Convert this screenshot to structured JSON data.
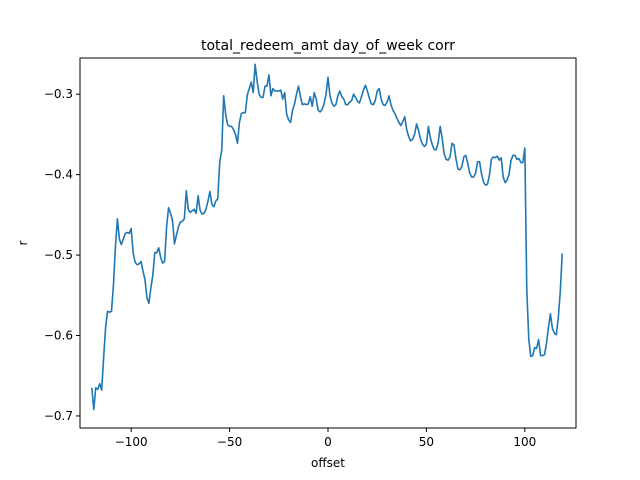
{
  "chart_data": {
    "type": "line",
    "title": "total_redeem_amt day_of_week corr",
    "xlabel": "offset",
    "ylabel": "r",
    "xlim": [
      -126,
      126
    ],
    "ylim": [
      -0.715,
      -0.255
    ],
    "xticks": [
      -100,
      -50,
      0,
      50,
      100
    ],
    "xtick_labels": [
      "−100",
      "−50",
      "0",
      "50",
      "100"
    ],
    "yticks": [
      -0.7,
      -0.6,
      -0.5,
      -0.4,
      -0.3
    ],
    "ytick_labels": [
      "−0.7",
      "−0.6",
      "−0.5",
      "−0.4",
      "−0.3"
    ],
    "grid": false,
    "legend": "none",
    "series": [
      {
        "color": "#1f77b4",
        "points": [
          [
            -120,
            -0.665
          ],
          [
            -119,
            -0.692
          ],
          [
            -118,
            -0.665
          ],
          [
            -117,
            -0.667
          ],
          [
            -116,
            -0.66
          ],
          [
            -115,
            -0.668
          ],
          [
            -114,
            -0.628
          ],
          [
            -113,
            -0.59
          ],
          [
            -112,
            -0.57
          ],
          [
            -111,
            -0.571
          ],
          [
            -110,
            -0.57
          ],
          [
            -109,
            -0.537
          ],
          [
            -108,
            -0.49
          ],
          [
            -107,
            -0.455
          ],
          [
            -106,
            -0.48
          ],
          [
            -105,
            -0.487
          ],
          [
            -104,
            -0.48
          ],
          [
            -103,
            -0.473
          ],
          [
            -102,
            -0.472
          ],
          [
            -101,
            -0.473
          ],
          [
            -100,
            -0.467
          ],
          [
            -99,
            -0.497
          ],
          [
            -98,
            -0.509
          ],
          [
            -97,
            -0.512
          ],
          [
            -96,
            -0.511
          ],
          [
            -95,
            -0.508
          ],
          [
            -94,
            -0.52
          ],
          [
            -93,
            -0.53
          ],
          [
            -92,
            -0.553
          ],
          [
            -91,
            -0.56
          ],
          [
            -90,
            -0.541
          ],
          [
            -89,
            -0.525
          ],
          [
            -88,
            -0.497
          ],
          [
            -87,
            -0.497
          ],
          [
            -86,
            -0.491
          ],
          [
            -85,
            -0.503
          ],
          [
            -84,
            -0.51
          ],
          [
            -83,
            -0.508
          ],
          [
            -82,
            -0.465
          ],
          [
            -81,
            -0.441
          ],
          [
            -80,
            -0.448
          ],
          [
            -79,
            -0.457
          ],
          [
            -78,
            -0.486
          ],
          [
            -77,
            -0.475
          ],
          [
            -76,
            -0.465
          ],
          [
            -75,
            -0.459
          ],
          [
            -74,
            -0.458
          ],
          [
            -73,
            -0.455
          ],
          [
            -72,
            -0.42
          ],
          [
            -71,
            -0.443
          ],
          [
            -70,
            -0.447
          ],
          [
            -69,
            -0.445
          ],
          [
            -68,
            -0.443
          ],
          [
            -67,
            -0.448
          ],
          [
            -66,
            -0.426
          ],
          [
            -65,
            -0.444
          ],
          [
            -64,
            -0.449
          ],
          [
            -63,
            -0.448
          ],
          [
            -62,
            -0.443
          ],
          [
            -61,
            -0.433
          ],
          [
            -60,
            -0.421
          ],
          [
            -59,
            -0.437
          ],
          [
            -58,
            -0.44
          ],
          [
            -57,
            -0.433
          ],
          [
            -56,
            -0.43
          ],
          [
            -55,
            -0.384
          ],
          [
            -54,
            -0.37
          ],
          [
            -53,
            -0.302
          ],
          [
            -52,
            -0.325
          ],
          [
            -51,
            -0.338
          ],
          [
            -50,
            -0.34
          ],
          [
            -49,
            -0.34
          ],
          [
            -48,
            -0.344
          ],
          [
            -47,
            -0.35
          ],
          [
            -46,
            -0.361
          ],
          [
            -45,
            -0.335
          ],
          [
            -44,
            -0.324
          ],
          [
            -43,
            -0.323
          ],
          [
            -42,
            -0.323
          ],
          [
            -41,
            -0.301
          ],
          [
            -40,
            -0.293
          ],
          [
            -39,
            -0.285
          ],
          [
            -38,
            -0.298
          ],
          [
            -37,
            -0.263
          ],
          [
            -36,
            -0.284
          ],
          [
            -35,
            -0.3
          ],
          [
            -34,
            -0.304
          ],
          [
            -33,
            -0.304
          ],
          [
            -32,
            -0.29
          ],
          [
            -31,
            -0.29
          ],
          [
            -30,
            -0.276
          ],
          [
            -29,
            -0.302
          ],
          [
            -28,
            -0.293
          ],
          [
            -27,
            -0.296
          ],
          [
            -26,
            -0.296
          ],
          [
            -25,
            -0.296
          ],
          [
            -24,
            -0.295
          ],
          [
            -23,
            -0.306
          ],
          [
            -22,
            -0.298
          ],
          [
            -21,
            -0.325
          ],
          [
            -20,
            -0.332
          ],
          [
            -19,
            -0.335
          ],
          [
            -18,
            -0.32
          ],
          [
            -17,
            -0.312
          ],
          [
            -16,
            -0.3
          ],
          [
            -15,
            -0.29
          ],
          [
            -14,
            -0.303
          ],
          [
            -13,
            -0.313
          ],
          [
            -12,
            -0.312
          ],
          [
            -11,
            -0.313
          ],
          [
            -10,
            -0.312
          ],
          [
            -9,
            -0.303
          ],
          [
            -8,
            -0.315
          ],
          [
            -7,
            -0.298
          ],
          [
            -6,
            -0.306
          ],
          [
            -5,
            -0.32
          ],
          [
            -4,
            -0.322
          ],
          [
            -3,
            -0.319
          ],
          [
            -2,
            -0.312
          ],
          [
            -1,
            -0.3
          ],
          [
            0,
            -0.279
          ],
          [
            1,
            -0.302
          ],
          [
            2,
            -0.311
          ],
          [
            3,
            -0.315
          ],
          [
            4,
            -0.313
          ],
          [
            5,
            -0.302
          ],
          [
            6,
            -0.296
          ],
          [
            7,
            -0.303
          ],
          [
            8,
            -0.306
          ],
          [
            9,
            -0.313
          ],
          [
            10,
            -0.313
          ],
          [
            11,
            -0.31
          ],
          [
            12,
            -0.308
          ],
          [
            13,
            -0.3
          ],
          [
            14,
            -0.304
          ],
          [
            15,
            -0.309
          ],
          [
            16,
            -0.311
          ],
          [
            17,
            -0.303
          ],
          [
            18,
            -0.295
          ],
          [
            19,
            -0.289
          ],
          [
            20,
            -0.296
          ],
          [
            21,
            -0.305
          ],
          [
            22,
            -0.312
          ],
          [
            23,
            -0.313
          ],
          [
            24,
            -0.308
          ],
          [
            25,
            -0.296
          ],
          [
            26,
            -0.293
          ],
          [
            27,
            -0.306
          ],
          [
            28,
            -0.313
          ],
          [
            29,
            -0.314
          ],
          [
            30,
            -0.31
          ],
          [
            31,
            -0.302
          ],
          [
            32,
            -0.313
          ],
          [
            33,
            -0.32
          ],
          [
            34,
            -0.324
          ],
          [
            35,
            -0.33
          ],
          [
            36,
            -0.335
          ],
          [
            37,
            -0.339
          ],
          [
            38,
            -0.334
          ],
          [
            39,
            -0.328
          ],
          [
            40,
            -0.344
          ],
          [
            41,
            -0.353
          ],
          [
            42,
            -0.358
          ],
          [
            43,
            -0.356
          ],
          [
            44,
            -0.35
          ],
          [
            45,
            -0.337
          ],
          [
            46,
            -0.345
          ],
          [
            47,
            -0.356
          ],
          [
            48,
            -0.362
          ],
          [
            49,
            -0.365
          ],
          [
            50,
            -0.362
          ],
          [
            51,
            -0.34
          ],
          [
            52,
            -0.354
          ],
          [
            53,
            -0.363
          ],
          [
            54,
            -0.369
          ],
          [
            55,
            -0.369
          ],
          [
            56,
            -0.36
          ],
          [
            57,
            -0.34
          ],
          [
            58,
            -0.355
          ],
          [
            59,
            -0.374
          ],
          [
            60,
            -0.381
          ],
          [
            61,
            -0.382
          ],
          [
            62,
            -0.378
          ],
          [
            63,
            -0.361
          ],
          [
            64,
            -0.363
          ],
          [
            65,
            -0.38
          ],
          [
            66,
            -0.393
          ],
          [
            67,
            -0.394
          ],
          [
            68,
            -0.39
          ],
          [
            69,
            -0.378
          ],
          [
            70,
            -0.376
          ],
          [
            71,
            -0.386
          ],
          [
            72,
            -0.398
          ],
          [
            73,
            -0.403
          ],
          [
            74,
            -0.403
          ],
          [
            75,
            -0.398
          ],
          [
            76,
            -0.384
          ],
          [
            77,
            -0.384
          ],
          [
            78,
            -0.399
          ],
          [
            79,
            -0.409
          ],
          [
            80,
            -0.413
          ],
          [
            81,
            -0.412
          ],
          [
            82,
            -0.401
          ],
          [
            83,
            -0.381
          ],
          [
            84,
            -0.378
          ],
          [
            85,
            -0.379
          ],
          [
            86,
            -0.377
          ],
          [
            87,
            -0.382
          ],
          [
            88,
            -0.379
          ],
          [
            89,
            -0.403
          ],
          [
            90,
            -0.41
          ],
          [
            91,
            -0.407
          ],
          [
            92,
            -0.399
          ],
          [
            93,
            -0.382
          ],
          [
            94,
            -0.376
          ],
          [
            95,
            -0.376
          ],
          [
            96,
            -0.381
          ],
          [
            97,
            -0.38
          ],
          [
            98,
            -0.385
          ],
          [
            99,
            -0.385
          ],
          [
            100,
            -0.367
          ],
          [
            101,
            -0.543
          ],
          [
            102,
            -0.604
          ],
          [
            103,
            -0.626
          ],
          [
            104,
            -0.625
          ],
          [
            105,
            -0.615
          ],
          [
            106,
            -0.616
          ],
          [
            107,
            -0.605
          ],
          [
            108,
            -0.625
          ],
          [
            109,
            -0.625
          ],
          [
            110,
            -0.624
          ],
          [
            111,
            -0.61
          ],
          [
            112,
            -0.59
          ],
          [
            113,
            -0.573
          ],
          [
            114,
            -0.591
          ],
          [
            115,
            -0.597
          ],
          [
            116,
            -0.599
          ],
          [
            117,
            -0.578
          ],
          [
            118,
            -0.546
          ],
          [
            119,
            -0.498
          ]
        ]
      }
    ]
  }
}
